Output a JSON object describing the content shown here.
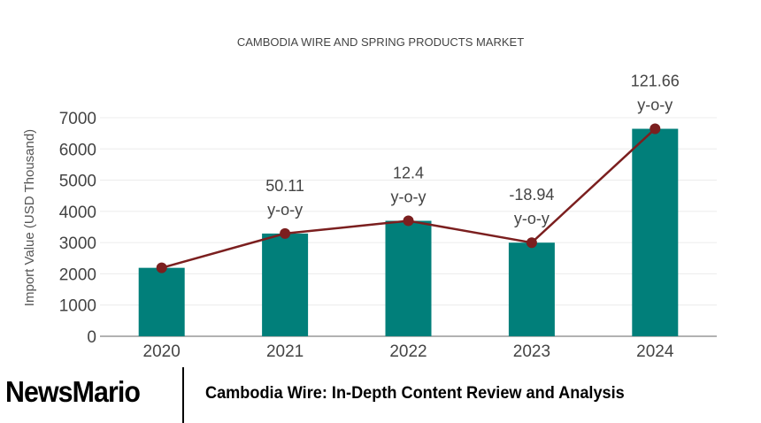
{
  "chart_data": {
    "type": "bar",
    "title": "CAMBODIA WIRE AND SPRING PRODUCTS MARKET",
    "xlabel": "",
    "ylabel": "Import Value (USD Thousand)",
    "ylim": [
      0,
      7000
    ],
    "yticks": [
      0,
      1000,
      2000,
      3000,
      4000,
      5000,
      6000,
      7000
    ],
    "grid": true,
    "categories": [
      "2020",
      "2021",
      "2022",
      "2023",
      "2024"
    ],
    "values": [
      2192,
      3290,
      3698,
      2998,
      6645
    ],
    "line_overlay": true,
    "annotations": [
      {
        "category": "2021",
        "value": "50.11",
        "suffix": "y-o-y"
      },
      {
        "category": "2022",
        "value": "12.4",
        "suffix": "y-o-y"
      },
      {
        "category": "2023",
        "value": "-18.94",
        "suffix": "y-o-y"
      },
      {
        "category": "2024",
        "value": "121.66",
        "suffix": "y-o-y"
      }
    ],
    "colors": {
      "bar": "#017f7a",
      "line": "#7b1f1f",
      "text": "#444444",
      "grid": "#ececec"
    }
  },
  "footer": {
    "brand": "NewsMario",
    "caption": "Cambodia Wire: In-Depth Content Review and Analysis"
  }
}
